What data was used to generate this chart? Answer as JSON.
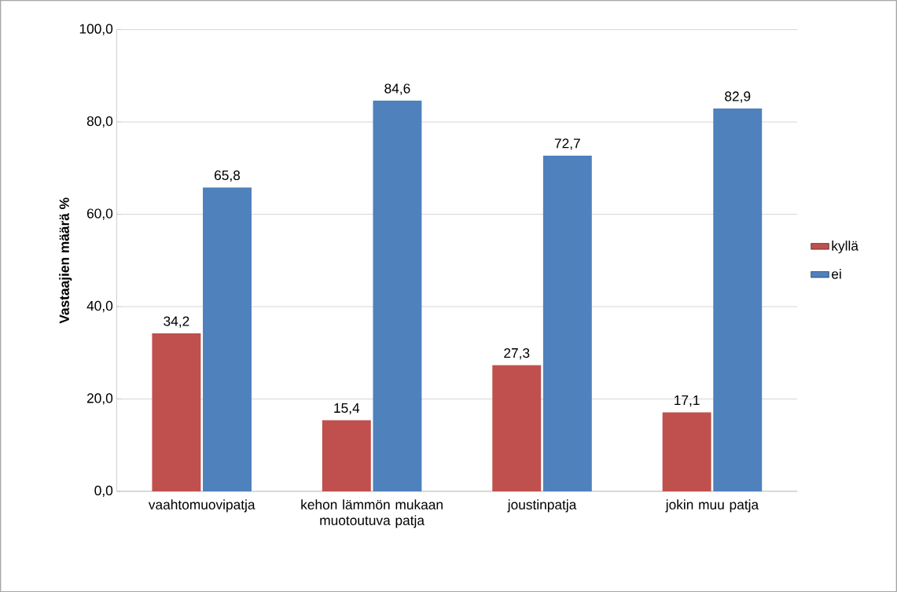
{
  "chart_data": {
    "type": "bar",
    "ylabel": "Vastaajien määrä %",
    "categories": [
      "vaahtomuovipatja",
      "kehon lämmön mukaan muotoutuva patja",
      "joustinpatja",
      "jokin muu patja"
    ],
    "series": [
      {
        "name": "kyllä",
        "color": "#c0504d",
        "values": [
          34.2,
          15.4,
          27.3,
          17.1
        ],
        "value_labels": [
          "34,2",
          "15,4",
          "27,3",
          "17,1"
        ]
      },
      {
        "name": "ei",
        "color": "#4f81bd",
        "values": [
          65.8,
          84.6,
          72.7,
          82.9
        ],
        "value_labels": [
          "65,8",
          "84,6",
          "72,7",
          "82,9"
        ]
      }
    ],
    "ylim": [
      0,
      100
    ],
    "yticks": [
      {
        "value": 0,
        "label": "0,0"
      },
      {
        "value": 20,
        "label": "20,0"
      },
      {
        "value": 40,
        "label": "40,0"
      },
      {
        "value": 60,
        "label": "60,0"
      },
      {
        "value": 80,
        "label": "80,0"
      },
      {
        "value": 100,
        "label": "100,0"
      }
    ],
    "grid": "y",
    "legend": "right"
  }
}
